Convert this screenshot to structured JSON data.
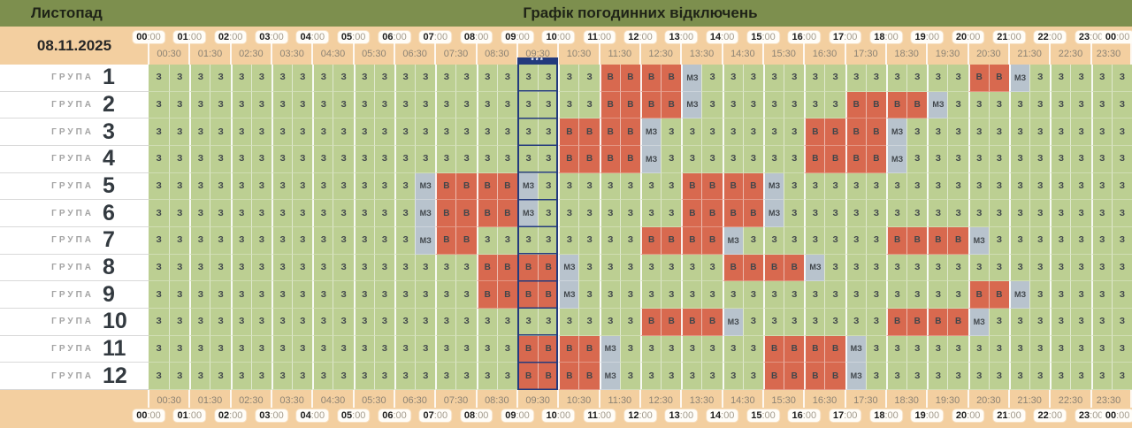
{
  "topbar": {
    "month": "Листопад",
    "title": "Графік погодинних відключень",
    "bg_color": "#7d8f4e"
  },
  "date": "08.11.2025",
  "time_axis": {
    "hours": [
      "00:00",
      "01:00",
      "02:00",
      "03:00",
      "04:00",
      "05:00",
      "06:00",
      "07:00",
      "08:00",
      "09:00",
      "10:00",
      "11:00",
      "12:00",
      "13:00",
      "14:00",
      "15:00",
      "16:00",
      "17:00",
      "18:00",
      "19:00",
      "20:00",
      "21:00",
      "22:00",
      "23:00",
      "00:00"
    ],
    "half_hours": [
      "00:30",
      "01:30",
      "02:30",
      "03:30",
      "04:30",
      "05:30",
      "06:30",
      "07:30",
      "08:30",
      "09:30",
      "10:30",
      "11:30",
      "12:30",
      "13:30",
      "14:30",
      "15:30",
      "16:30",
      "17:30",
      "18:30",
      "19:30",
      "20:30",
      "21:30",
      "22:30",
      "23:30"
    ]
  },
  "now_marker": {
    "header_label": "09:30",
    "stars": "***",
    "col_start": 18,
    "col_span": 2,
    "color": "#233a7d"
  },
  "legend": {
    "Z": {
      "label": "З",
      "color": "#bccf92"
    },
    "V": {
      "label": "В",
      "color": "#d8694f"
    },
    "MZ": {
      "label": "МЗ",
      "color": "#b8c3cd"
    }
  },
  "groups": [
    {
      "label": "ГРУПА",
      "number": "1",
      "cells": "Z*22 V*4 MZ Z*13 V*2 MZ Z*5"
    },
    {
      "label": "ГРУПА",
      "number": "2",
      "cells": "Z*22 V*4 MZ Z*7 V*4 MZ Z*9"
    },
    {
      "label": "ГРУПА",
      "number": "3",
      "cells": "Z*20 V*4 MZ Z*7 V*4 MZ Z*11"
    },
    {
      "label": "ГРУПА",
      "number": "4",
      "cells": "Z*20 V*4 MZ Z*7 V*4 MZ Z*11"
    },
    {
      "label": "ГРУПА",
      "number": "5",
      "cells": "Z*13 MZ V*4 MZ Z*7 V*4 MZ Z*17"
    },
    {
      "label": "ГРУПА",
      "number": "6",
      "cells": "Z*13 MZ V*4 MZ Z*7 V*4 MZ Z*17"
    },
    {
      "label": "ГРУПА",
      "number": "7",
      "cells": "Z*13 MZ V*2 Z*8 V*4 MZ Z*7 V*4 MZ Z*7"
    },
    {
      "label": "ГРУПА",
      "number": "8",
      "cells": "Z*16 V*4 MZ Z*7 V*4 MZ Z*15"
    },
    {
      "label": "ГРУПА",
      "number": "9",
      "cells": "Z*16 V*4 MZ Z*19 V*2 MZ Z*5"
    },
    {
      "label": "ГРУПА",
      "number": "10",
      "cells": "Z*24 V*4 MZ Z*7 V*4 MZ Z*7"
    },
    {
      "label": "ГРУПА",
      "number": "11",
      "cells": "Z*18 V*4 MZ Z*7 V*4 MZ Z*13"
    },
    {
      "label": "ГРУПА",
      "number": "12",
      "cells": "Z*18 V*4 MZ Z*7 V*4 MZ Z*13"
    }
  ]
}
